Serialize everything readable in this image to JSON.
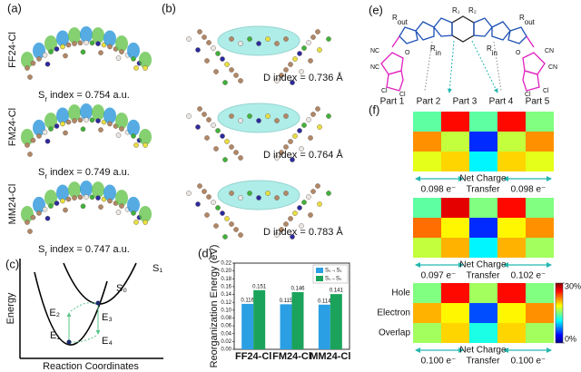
{
  "panels": {
    "a": "(a)",
    "b": "(b)",
    "c": "(c)",
    "d": "(d)",
    "e": "(e)",
    "f": "(f)"
  },
  "panel_a": {
    "molecules": [
      {
        "name": "FF24-Cl",
        "symbol": "S",
        "sub": "r",
        "text": " index = 0.754 a.u."
      },
      {
        "name": "FM24-Cl",
        "symbol": "S",
        "sub": "r",
        "text": " index = 0.749 a.u."
      },
      {
        "name": "MM24-Cl",
        "symbol": "S",
        "sub": "r",
        "text": " index = 0.747 a.u."
      }
    ]
  },
  "panel_b": {
    "indices": [
      "D index = 0.736 Å",
      "D index = 0.764 Å",
      "D index = 0.783 Å"
    ]
  },
  "panel_c": {
    "y_label": "Energy",
    "x_label": "Reaction Coordinates",
    "upper_state": "S₁",
    "lower_state": "S₀",
    "energies": [
      "E₁",
      "E₂",
      "E₃",
      "E₄"
    ]
  },
  "panel_e": {
    "r1": "R₁",
    "r2": "R₂",
    "r_out": {
      "base": "R",
      "sub": "out"
    },
    "r_in": {
      "base": "R",
      "sub": "in"
    },
    "nc": "NC",
    "cn": "CN",
    "cl": "Cl",
    "o": "O",
    "parts": [
      "Part 1",
      "Part 2",
      "Part 3",
      "Part 4",
      "Part 5"
    ]
  },
  "chart_data": {
    "type": "bar",
    "y_label": "Reorganization Energy (eV)",
    "categories": [
      "FF24-Cl",
      "FM24-Cl",
      "MM24-Cl"
    ],
    "series": [
      {
        "name": "S₀→S₁",
        "color": "#2b9fe3",
        "values": [
          0.116,
          0.115,
          0.114
        ]
      },
      {
        "name": "S₁→S₀",
        "color": "#1ca35b",
        "values": [
          0.151,
          0.146,
          0.141
        ]
      }
    ],
    "ylim": [
      0,
      0.22
    ],
    "yticks": [
      {
        "value": 0,
        "label": "0.00"
      },
      {
        "value": 0.02,
        "label": "0.02"
      },
      {
        "value": 0.04,
        "label": "0.04"
      },
      {
        "value": 0.06,
        "label": "0.06"
      },
      {
        "value": 0.08,
        "label": "0.08"
      },
      {
        "value": 0.1,
        "label": "0.10"
      },
      {
        "value": 0.12,
        "label": "0.12"
      },
      {
        "value": 0.14,
        "label": "0.14"
      },
      {
        "value": 0.16,
        "label": "0.16"
      },
      {
        "value": 0.18,
        "label": "0.18"
      },
      {
        "value": 0.2,
        "label": "0.20"
      },
      {
        "value": 0.22,
        "label": "0.22"
      }
    ],
    "legend": "upper right"
  },
  "panel_f": {
    "row_labels": [
      "Hole",
      "Electron",
      "Overlap"
    ],
    "transfer_label": [
      "Net Charge",
      "Transfer"
    ],
    "maps": [
      {
        "values": [
          [
            14,
            26,
            14,
            26,
            15
          ],
          [
            22,
            17,
            5,
            17,
            22
          ],
          [
            18,
            20,
            11,
            20,
            18
          ]
        ],
        "left": "0.098 e⁻",
        "right": "0.098 e⁻"
      },
      {
        "values": [
          [
            14,
            27,
            15,
            26,
            15
          ],
          [
            23,
            19,
            5,
            19,
            22
          ],
          [
            17,
            21,
            11,
            21,
            16
          ]
        ],
        "left": "0.097 e⁻",
        "right": "0.102 e⁻"
      },
      {
        "values": [
          [
            15,
            26,
            16,
            26,
            15
          ],
          [
            21,
            19,
            6,
            19,
            22
          ],
          [
            16,
            20,
            12,
            20,
            16
          ]
        ],
        "left": "0.100 e⁻",
        "right": "0.100 e⁻"
      }
    ],
    "colorbar": {
      "range": [
        0,
        30
      ],
      "ticks": [
        {
          "value": 30,
          "label": "30%"
        },
        {
          "value": 0,
          "label": "0%"
        }
      ]
    }
  }
}
